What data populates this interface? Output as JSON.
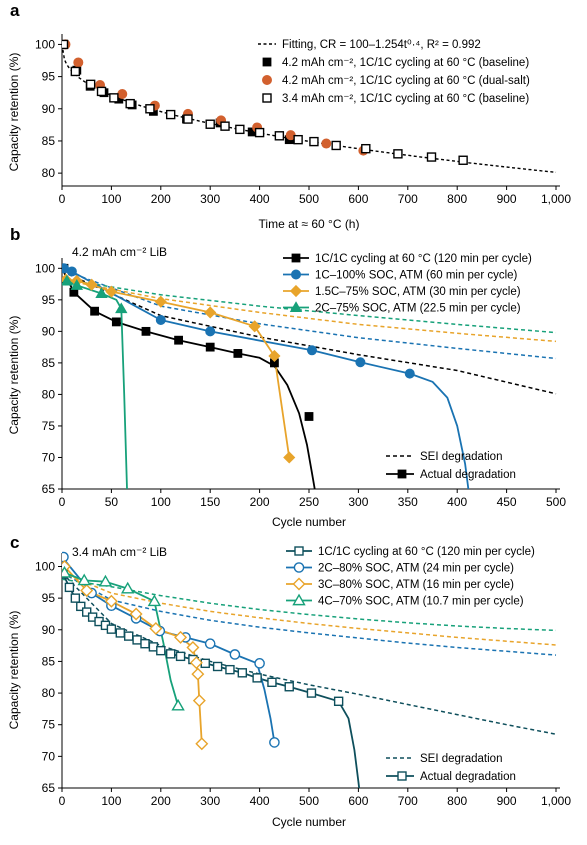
{
  "panels": [
    {
      "letter": "a",
      "annotation": ""
    },
    {
      "letter": "b",
      "annotation": "4.2 mAh cm⁻² LiB"
    },
    {
      "letter": "c",
      "annotation": "3.4 mAh cm⁻² LiB"
    }
  ],
  "colors": {
    "black": "#000000",
    "dual_salt": "#d2602e",
    "blue": "#1a73b2",
    "orange": "#e8a42b",
    "green": "#17a17a",
    "teal": "#0e4f5c"
  },
  "chart_data": [
    {
      "type": "scatter",
      "panel": "a",
      "xlabel": "Time at ≈ 60 °C (h)",
      "ylabel": "Capacity retention (%)",
      "xlim": [
        0,
        1000
      ],
      "ylim": [
        78,
        101
      ],
      "xticks": [
        0,
        100,
        200,
        300,
        400,
        500,
        600,
        700,
        800,
        900,
        1000
      ],
      "xtick_labels": [
        "0",
        "100",
        "200",
        "300",
        "400",
        "500",
        "600",
        "700",
        "800",
        "900",
        "1,000"
      ],
      "yticks": [
        80,
        85,
        90,
        95,
        100
      ],
      "fit_label": "Fitting, CR = 100–1.254t⁰·⁴, R² = 0.992",
      "series": [
        {
          "name": "4.2 mAh cm⁻², 1C/1C cycling at 60 °C (baseline)",
          "marker": "square-filled",
          "color": "#000000",
          "x": [
            4,
            30,
            57,
            85,
            115,
            142,
            185,
            252,
            320,
            385,
            460
          ],
          "y": [
            100,
            96,
            93.5,
            92.5,
            91.5,
            90.6,
            89.6,
            88.4,
            87.8,
            86.4,
            85.2
          ]
        },
        {
          "name": "4.2 mAh cm⁻², 1C/1C cycling at 60 °C (dual-salt)",
          "marker": "circle-filled",
          "color": "#d2602e",
          "x": [
            7,
            33,
            77,
            122,
            188,
            255,
            322,
            395,
            463,
            535,
            610
          ],
          "y": [
            100,
            97.2,
            93.7,
            92.3,
            90.5,
            89.2,
            88.2,
            87.1,
            85.9,
            84.6,
            83.5
          ]
        },
        {
          "name": "3.4 mAh cm⁻², 1C/1C cycling at 60 °C (baseline)",
          "marker": "square-open",
          "color": "#000000",
          "x": [
            3,
            27,
            58,
            80,
            105,
            138,
            178,
            220,
            255,
            300,
            330,
            360,
            400,
            440,
            478,
            510,
            555,
            615,
            680,
            748,
            812
          ],
          "y": [
            100,
            95.8,
            93.8,
            92.7,
            91.7,
            90.8,
            90,
            89.1,
            88.4,
            87.6,
            87.3,
            86.8,
            86.3,
            85.8,
            85.2,
            84.9,
            84.3,
            83.8,
            83,
            82.5,
            82
          ]
        }
      ]
    },
    {
      "type": "line",
      "panel": "b",
      "xlabel": "Cycle number",
      "ylabel": "Capacity retention (%)",
      "xlim": [
        0,
        500
      ],
      "ylim": [
        65,
        101
      ],
      "xticks": [
        0,
        50,
        100,
        150,
        200,
        250,
        300,
        350,
        400,
        450,
        500
      ],
      "yticks": [
        65,
        70,
        75,
        80,
        85,
        90,
        95,
        100
      ],
      "sei_legend": "SEI degradation",
      "actual_legend": "Actual degradation",
      "series": [
        {
          "name": "1C/1C cycling at 60 °C (120 min per cycle)",
          "marker": "square-filled",
          "color": "#000000",
          "x": [
            2,
            12,
            33,
            55,
            85,
            118,
            150,
            178,
            215,
            250
          ],
          "y": [
            100,
            96.2,
            93.2,
            91.5,
            90,
            88.6,
            87.5,
            86.5,
            85,
            76.5
          ],
          "curve_x": [
            0,
            12,
            33,
            55,
            85,
            118,
            150,
            178,
            200,
            215,
            228,
            240,
            248,
            253,
            258
          ],
          "curve_y": [
            100,
            96.2,
            93.2,
            91.5,
            90,
            88.6,
            87.5,
            86.5,
            85.8,
            84.5,
            81.5,
            77,
            72,
            67.5,
            63
          ],
          "sei_x": [
            0,
            100,
            200,
            300,
            400,
            500
          ],
          "sei_y": [
            99.5,
            92.5,
            89.1,
            86.3,
            83.8,
            80.1
          ]
        },
        {
          "name": "1C–100% SOC, ATM (60 min per cycle)",
          "marker": "circle-filled",
          "color": "#1a73b2",
          "x": [
            2,
            10,
            100,
            150,
            253,
            302,
            352
          ],
          "y": [
            100,
            99.5,
            91.8,
            90,
            87,
            85.1,
            83.3
          ],
          "curve_x": [
            0,
            10,
            100,
            150,
            253,
            302,
            352,
            375,
            390,
            400,
            408,
            413
          ],
          "curve_y": [
            100,
            99.5,
            91.8,
            90,
            87,
            85.1,
            83.3,
            82,
            79.5,
            75,
            69,
            63
          ],
          "sei_x": [
            0,
            100,
            200,
            300,
            400,
            500
          ],
          "sei_y": [
            99.8,
            94,
            91.2,
            89,
            87.3,
            85.7
          ]
        },
        {
          "name": "1.5C–75% SOC, ATM (30 min per cycle)",
          "marker": "diamond-filled",
          "color": "#e8a42b",
          "x": [
            4,
            15,
            30,
            50,
            100,
            150,
            195,
            215,
            230
          ],
          "y": [
            98.2,
            98,
            97.4,
            96.3,
            94.7,
            93,
            90.8,
            86.1,
            70
          ],
          "curve_x": [
            4,
            15,
            30,
            50,
            100,
            150,
            195,
            215,
            230
          ],
          "curve_y": [
            98.2,
            98,
            97.4,
            96.3,
            94.7,
            93,
            90.8,
            86.1,
            70
          ],
          "sei_x": [
            0,
            100,
            200,
            300,
            400,
            500
          ],
          "sei_y": [
            98.2,
            95.2,
            93,
            91.1,
            89.7,
            88.4
          ]
        },
        {
          "name": "2C–75% SOC, ATM (22.5 min per cycle)",
          "marker": "triangle-filled",
          "color": "#17a17a",
          "x": [
            5,
            15,
            40,
            60
          ],
          "y": [
            98,
            97.3,
            96,
            93.6
          ],
          "curve_x": [
            5,
            15,
            40,
            55,
            60,
            63,
            66
          ],
          "curve_y": [
            98,
            97.3,
            96,
            95,
            93.6,
            80,
            64
          ],
          "sei_x": [
            0,
            100,
            200,
            300,
            400,
            500
          ],
          "sei_y": [
            98.3,
            95.8,
            94,
            92.5,
            91.1,
            89.8
          ]
        }
      ]
    },
    {
      "type": "line",
      "panel": "c",
      "xlabel": "Cycle number",
      "ylabel": "Capacity retention (%)",
      "xlim": [
        0,
        1000
      ],
      "ylim": [
        65,
        101.5
      ],
      "xticks": [
        0,
        100,
        200,
        300,
        400,
        500,
        600,
        700,
        800,
        900,
        1000
      ],
      "xtick_labels": [
        "0",
        "100",
        "200",
        "300",
        "400",
        "500",
        "600",
        "700",
        "800",
        "900",
        "1,000"
      ],
      "yticks": [
        65,
        70,
        75,
        80,
        85,
        90,
        95,
        100
      ],
      "sei_legend": "SEI degradation",
      "actual_legend": "Actual degradation",
      "series": [
        {
          "name": "1C/1C cycling at 60 °C (120 min per cycle)",
          "marker": "square-open",
          "color": "#0e4f5c",
          "x": [
            2,
            15,
            27,
            38,
            50,
            62,
            75,
            88,
            100,
            118,
            135,
            152,
            168,
            185,
            200,
            220,
            240,
            265,
            290,
            315,
            340,
            365,
            395,
            425,
            460,
            505,
            560
          ],
          "y": [
            98.8,
            96.7,
            95,
            93.7,
            92.8,
            92,
            91.3,
            90.7,
            90.1,
            89.5,
            89,
            88.4,
            87.8,
            87.3,
            86.7,
            86.2,
            85.8,
            85.3,
            84.7,
            84.2,
            83.7,
            83.2,
            82.4,
            81.7,
            81,
            80,
            78.7
          ],
          "curve_x": [
            0,
            15,
            27,
            38,
            50,
            62,
            75,
            88,
            100,
            118,
            135,
            152,
            168,
            185,
            200,
            220,
            240,
            265,
            290,
            315,
            340,
            365,
            395,
            425,
            460,
            505,
            560,
            580,
            592,
            600,
            606
          ],
          "curve_y": [
            99.2,
            96.7,
            95,
            93.7,
            92.8,
            92,
            91.3,
            90.7,
            90.1,
            89.5,
            89,
            88.4,
            87.8,
            87.3,
            86.7,
            86.2,
            85.8,
            85.3,
            84.7,
            84.2,
            83.7,
            83.2,
            82.4,
            81.7,
            81,
            80,
            78.7,
            76,
            71,
            66,
            62
          ],
          "sei_x": [
            0,
            100,
            200,
            300,
            400,
            500,
            600,
            700,
            800,
            900,
            1000
          ],
          "sei_y": [
            99,
            91,
            87.5,
            85,
            83,
            81.3,
            79.8,
            78.2,
            76.6,
            75,
            73.5
          ]
        },
        {
          "name": "2C–80% SOC, ATM (24 min per cycle)",
          "marker": "circle-open",
          "color": "#1a73b2",
          "x": [
            3,
            60,
            100,
            150,
            198,
            250,
            300,
            350,
            400,
            430
          ],
          "y": [
            101.5,
            95.8,
            93.8,
            91.8,
            89.8,
            88.8,
            87.8,
            86.1,
            84.7,
            72.2
          ],
          "curve_x": [
            0,
            60,
            100,
            150,
            198,
            250,
            300,
            350,
            395,
            410,
            422,
            430
          ],
          "curve_y": [
            101.5,
            95.8,
            93.8,
            91.8,
            89.8,
            88.8,
            87.8,
            86.1,
            84.7,
            80.5,
            76,
            72.2
          ],
          "sei_x": [
            0,
            100,
            200,
            300,
            400,
            500,
            600,
            700,
            800,
            900,
            1000
          ],
          "sei_y": [
            99,
            94.7,
            92.9,
            91.5,
            90.4,
            89.5,
            88.7,
            87.9,
            87.2,
            86.6,
            86
          ]
        },
        {
          "name": "3C–80% SOC, ATM (16 min per cycle)",
          "marker": "diamond-open",
          "color": "#e8a42b",
          "x": [
            5,
            50,
            100,
            150,
            190,
            240,
            265,
            272,
            275,
            278,
            283
          ],
          "y": [
            100,
            96.2,
            94.5,
            92.5,
            90.2,
            88.8,
            87.2,
            84.8,
            83,
            78.8,
            72
          ],
          "curve_x": [
            5,
            50,
            100,
            150,
            190,
            240,
            265,
            272,
            275,
            278,
            283
          ],
          "curve_y": [
            100,
            96.2,
            94.5,
            92.5,
            90.2,
            88.8,
            87.2,
            84.8,
            83,
            78.8,
            72
          ],
          "sei_x": [
            0,
            100,
            200,
            300,
            400,
            500,
            600,
            700,
            800,
            900,
            1000
          ],
          "sei_y": [
            99,
            95.8,
            94.2,
            92.9,
            91.9,
            91,
            90.2,
            89.5,
            88.8,
            88.2,
            87.6
          ]
        },
        {
          "name": "4C–70% SOC, ATM (10.7 min per cycle)",
          "marker": "triangle-open",
          "color": "#17a17a",
          "x": [
            5,
            45,
            88,
            133,
            187,
            235
          ],
          "y": [
            99,
            97.8,
            97.6,
            96.5,
            94.5,
            78
          ],
          "curve_x": [
            5,
            45,
            88,
            133,
            187,
            205,
            220,
            235
          ],
          "curve_y": [
            99,
            97.8,
            97.6,
            96.5,
            94.5,
            88,
            82,
            78
          ],
          "sei_x": [
            0,
            100,
            200,
            300,
            400,
            500,
            600,
            700,
            800,
            900,
            1000
          ],
          "sei_y": [
            98,
            96.8,
            95.4,
            94.2,
            93.2,
            92.4,
            91.7,
            91.1,
            90.6,
            90.2,
            89.9
          ]
        }
      ]
    }
  ]
}
